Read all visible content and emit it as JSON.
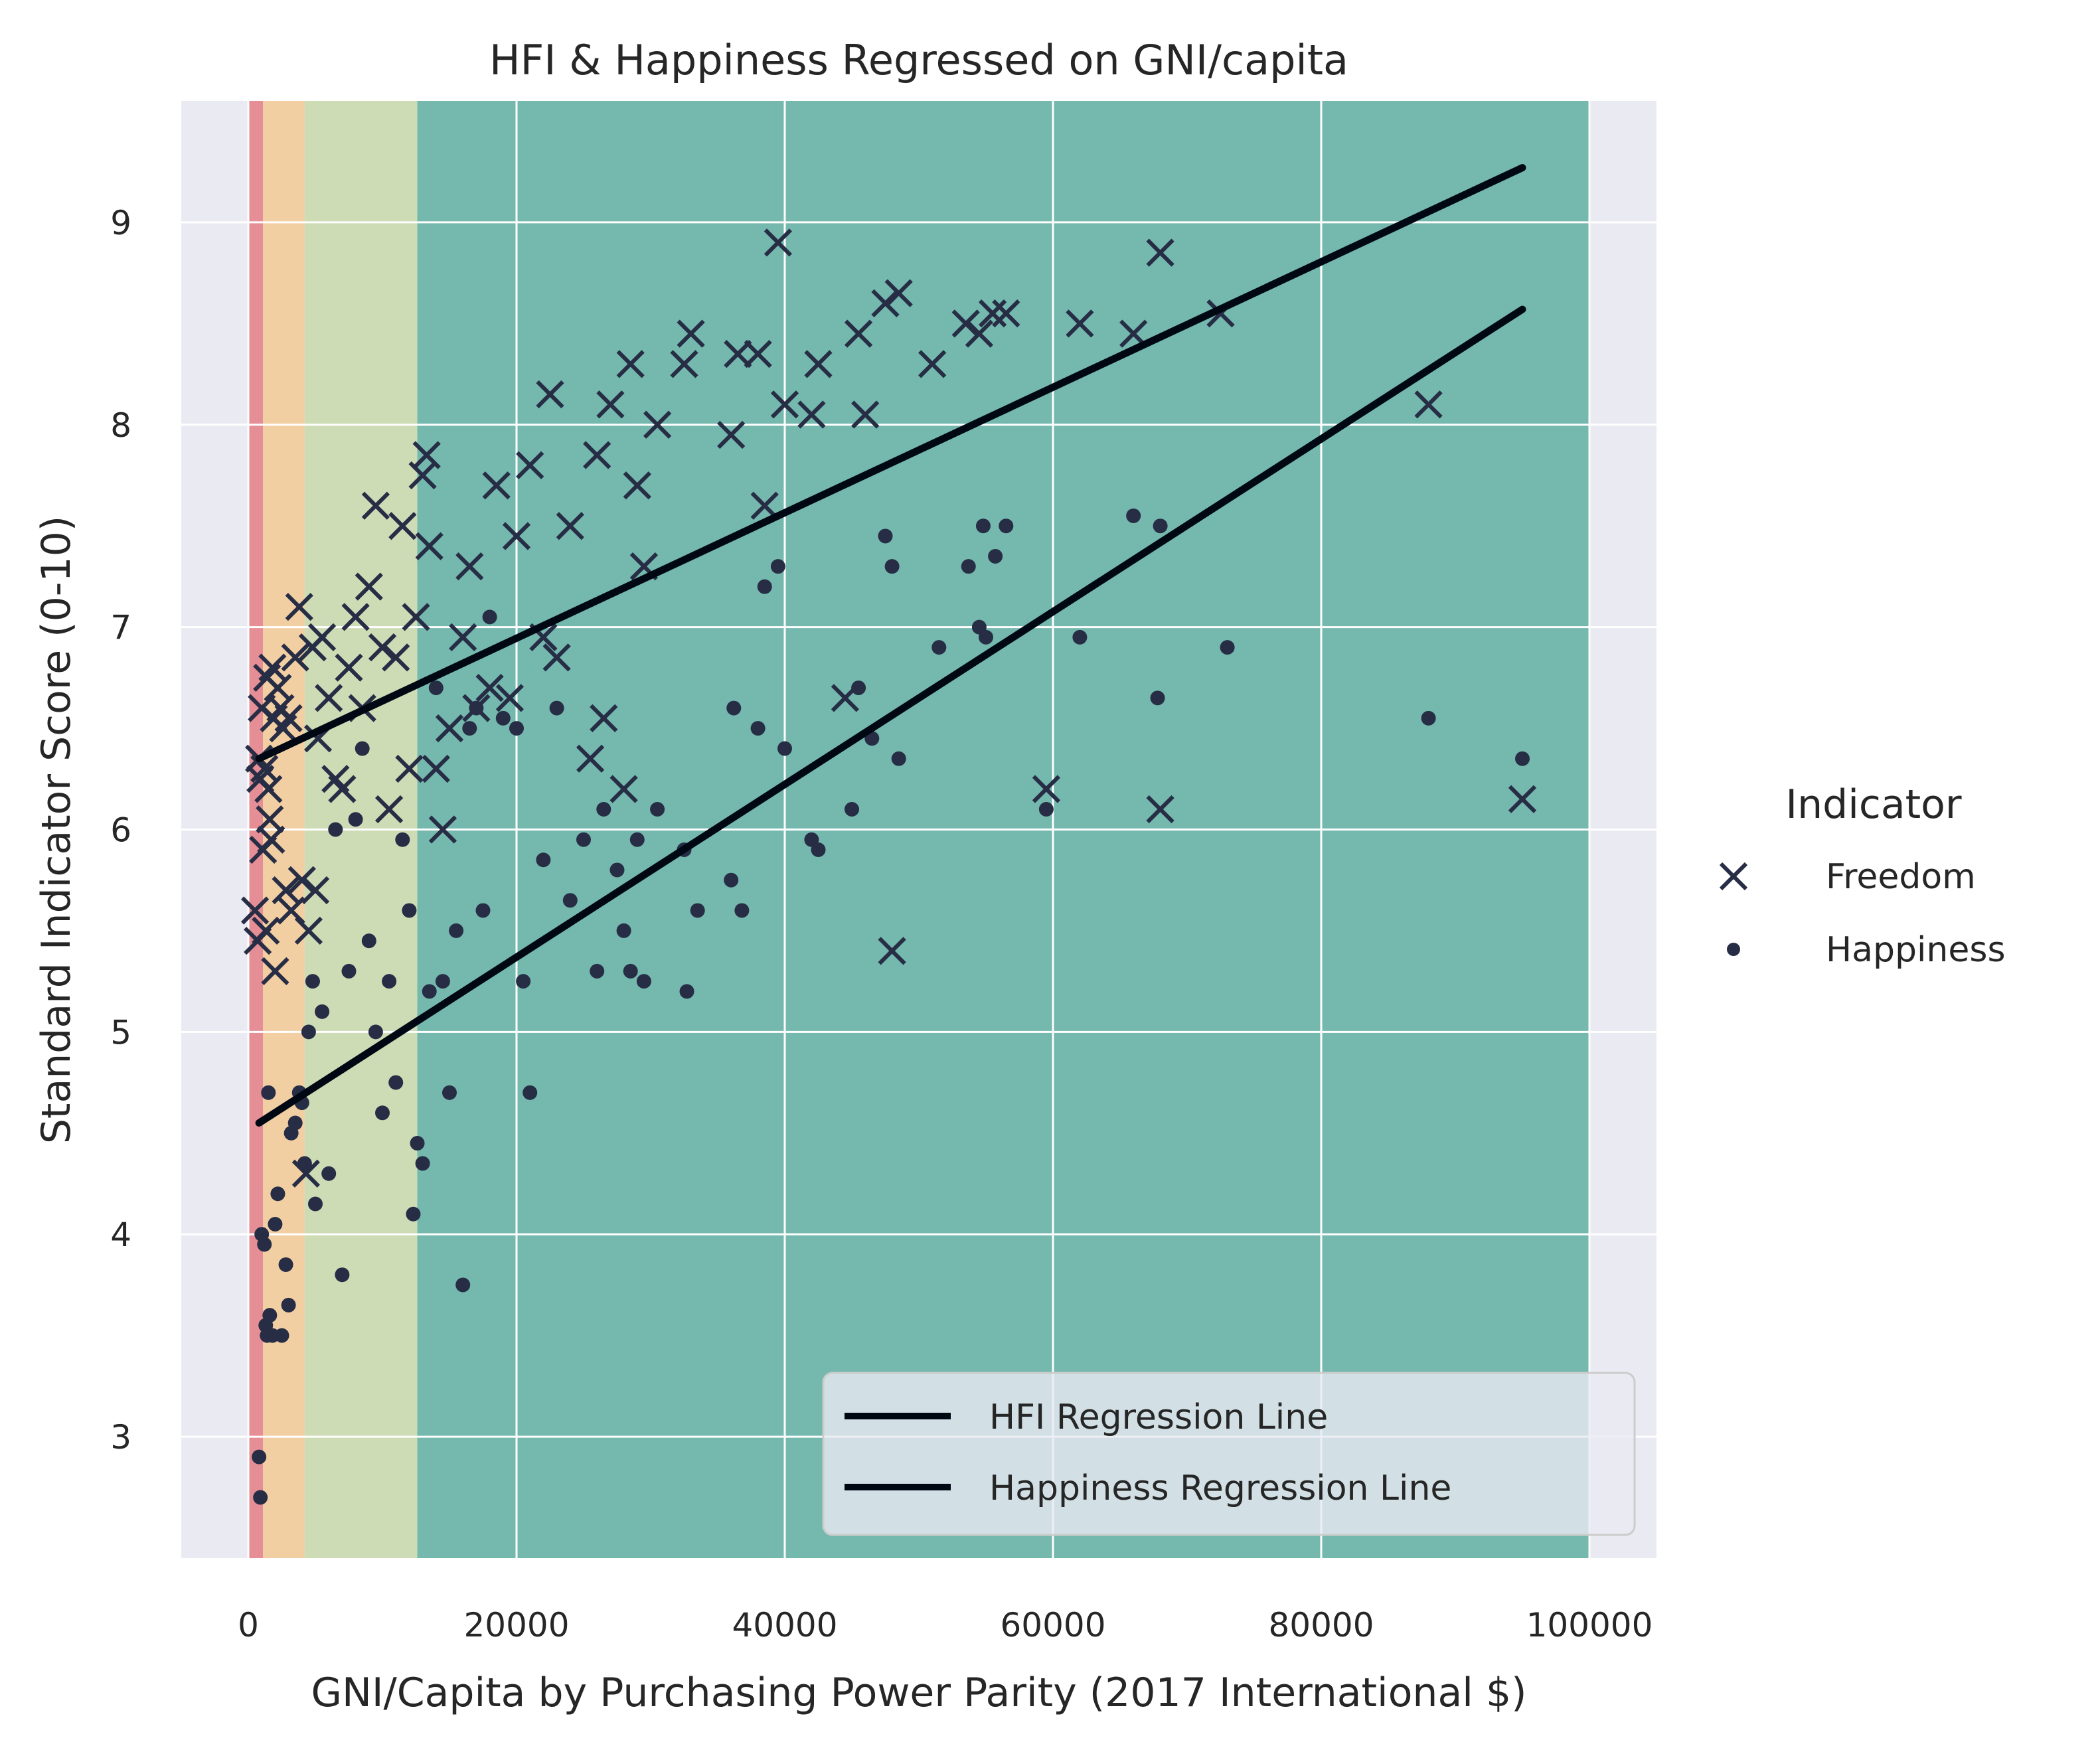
{
  "chart_data": {
    "type": "scatter",
    "title": "HFI & Happiness Regressed on GNI/capita",
    "xlabel": "GNI/Capita by Purchasing Power Parity (2017 International $)",
    "ylabel": "Standard Indicator Score (0-10)",
    "xlim": [
      -5000,
      105000
    ],
    "ylim": [
      2.4,
      9.6
    ],
    "x_ticks": [
      0,
      20000,
      40000,
      60000,
      80000,
      100000
    ],
    "x_tick_labels": [
      "0",
      "20000",
      "40000",
      "60000",
      "80000",
      "100000"
    ],
    "y_ticks": [
      3,
      4,
      5,
      6,
      7,
      8,
      9
    ],
    "y_tick_labels": [
      "3",
      "4",
      "5",
      "6",
      "7",
      "8",
      "9"
    ],
    "grid": true,
    "income_bands": [
      {
        "x0": 0,
        "x1": 1100,
        "color": "#e58e96"
      },
      {
        "x0": 1100,
        "x1": 4200,
        "color": "#f2cfa3"
      },
      {
        "x0": 4200,
        "x1": 12600,
        "color": "#cddcb5"
      },
      {
        "x0": 12600,
        "x1": 100000,
        "color": "#74b8ae"
      }
    ],
    "colors": {
      "background": "#eaeaf2",
      "marker": "#262d45",
      "line": "#000814",
      "grid": "#ffffff"
    },
    "series": [
      {
        "name": "Freedom",
        "marker": "x",
        "points": [
          [
            500,
            5.6
          ],
          [
            700,
            5.45
          ],
          [
            800,
            6.35
          ],
          [
            900,
            6.25
          ],
          [
            1000,
            6.6
          ],
          [
            1100,
            5.9
          ],
          [
            1200,
            6.3
          ],
          [
            1300,
            5.5
          ],
          [
            1400,
            6.75
          ],
          [
            1500,
            6.2
          ],
          [
            1600,
            6.05
          ],
          [
            1700,
            5.95
          ],
          [
            1800,
            6.8
          ],
          [
            1900,
            6.55
          ],
          [
            2000,
            5.3
          ],
          [
            2200,
            6.7
          ],
          [
            2400,
            6.6
          ],
          [
            2600,
            6.5
          ],
          [
            2800,
            5.7
          ],
          [
            3000,
            6.55
          ],
          [
            3200,
            5.6
          ],
          [
            3500,
            6.85
          ],
          [
            3800,
            7.1
          ],
          [
            4000,
            5.75
          ],
          [
            4300,
            4.3
          ],
          [
            4500,
            5.5
          ],
          [
            4800,
            6.9
          ],
          [
            5000,
            5.7
          ],
          [
            5200,
            6.45
          ],
          [
            5500,
            6.95
          ],
          [
            6000,
            6.65
          ],
          [
            6500,
            6.25
          ],
          [
            7000,
            6.2
          ],
          [
            7500,
            6.8
          ],
          [
            8000,
            7.05
          ],
          [
            8500,
            6.6
          ],
          [
            9000,
            7.2
          ],
          [
            9500,
            7.6
          ],
          [
            10000,
            6.9
          ],
          [
            10500,
            6.1
          ],
          [
            11000,
            6.85
          ],
          [
            11500,
            7.5
          ],
          [
            12000,
            6.3
          ],
          [
            12500,
            7.05
          ],
          [
            13000,
            7.75
          ],
          [
            13300,
            7.85
          ],
          [
            13500,
            7.4
          ],
          [
            14000,
            6.3
          ],
          [
            14500,
            6.0
          ],
          [
            15000,
            6.5
          ],
          [
            16000,
            6.95
          ],
          [
            16500,
            7.3
          ],
          [
            17000,
            6.6
          ],
          [
            18000,
            6.7
          ],
          [
            18500,
            7.7
          ],
          [
            19500,
            6.65
          ],
          [
            20000,
            7.45
          ],
          [
            21000,
            7.8
          ],
          [
            22000,
            6.95
          ],
          [
            22500,
            8.15
          ],
          [
            23000,
            6.85
          ],
          [
            24000,
            7.5
          ],
          [
            25500,
            6.35
          ],
          [
            26000,
            7.85
          ],
          [
            26500,
            6.55
          ],
          [
            27000,
            8.1
          ],
          [
            28000,
            6.2
          ],
          [
            28500,
            8.3
          ],
          [
            29000,
            7.7
          ],
          [
            29500,
            7.3
          ],
          [
            30500,
            8.0
          ],
          [
            32500,
            8.3
          ],
          [
            33000,
            8.45
          ],
          [
            36000,
            7.95
          ],
          [
            36500,
            8.35
          ],
          [
            38000,
            8.35
          ],
          [
            38500,
            7.6
          ],
          [
            39500,
            8.9
          ],
          [
            40000,
            8.1
          ],
          [
            42000,
            8.05
          ],
          [
            42500,
            8.3
          ],
          [
            44500,
            6.65
          ],
          [
            45500,
            8.45
          ],
          [
            46000,
            8.05
          ],
          [
            47500,
            8.6
          ],
          [
            48000,
            5.4
          ],
          [
            48500,
            8.65
          ],
          [
            51000,
            8.3
          ],
          [
            53500,
            8.5
          ],
          [
            54500,
            8.45
          ],
          [
            55500,
            8.55
          ],
          [
            56500,
            8.55
          ],
          [
            59500,
            6.2
          ],
          [
            62000,
            8.5
          ],
          [
            66000,
            8.45
          ],
          [
            68000,
            8.85
          ],
          [
            68000,
            6.1
          ],
          [
            72500,
            8.55
          ],
          [
            88000,
            8.1
          ],
          [
            95000,
            6.15
          ]
        ]
      },
      {
        "name": "Happiness",
        "marker": "dot",
        "points": [
          [
            800,
            2.9
          ],
          [
            900,
            2.7
          ],
          [
            1000,
            4.0
          ],
          [
            1200,
            3.95
          ],
          [
            1300,
            3.55
          ],
          [
            1400,
            3.5
          ],
          [
            1500,
            4.7
          ],
          [
            1600,
            3.6
          ],
          [
            1800,
            3.5
          ],
          [
            2000,
            4.05
          ],
          [
            2200,
            4.2
          ],
          [
            2500,
            3.5
          ],
          [
            2800,
            3.85
          ],
          [
            3000,
            3.65
          ],
          [
            3200,
            4.5
          ],
          [
            3500,
            4.55
          ],
          [
            3800,
            4.7
          ],
          [
            4000,
            4.65
          ],
          [
            4200,
            4.35
          ],
          [
            4500,
            5.0
          ],
          [
            4800,
            5.25
          ],
          [
            5000,
            4.15
          ],
          [
            5500,
            5.1
          ],
          [
            6000,
            4.3
          ],
          [
            6500,
            6.0
          ],
          [
            7000,
            3.8
          ],
          [
            7500,
            5.3
          ],
          [
            8000,
            6.05
          ],
          [
            8500,
            6.4
          ],
          [
            9000,
            5.45
          ],
          [
            9500,
            5.0
          ],
          [
            10000,
            4.6
          ],
          [
            10500,
            5.25
          ],
          [
            11000,
            4.75
          ],
          [
            11500,
            5.95
          ],
          [
            12000,
            5.6
          ],
          [
            12300,
            4.1
          ],
          [
            12600,
            4.45
          ],
          [
            13000,
            4.35
          ],
          [
            13500,
            5.2
          ],
          [
            14000,
            6.7
          ],
          [
            14500,
            5.25
          ],
          [
            15000,
            4.7
          ],
          [
            15500,
            5.5
          ],
          [
            16000,
            3.75
          ],
          [
            16500,
            6.5
          ],
          [
            17000,
            6.6
          ],
          [
            17500,
            5.6
          ],
          [
            18000,
            7.05
          ],
          [
            19000,
            6.55
          ],
          [
            20000,
            6.5
          ],
          [
            20500,
            5.25
          ],
          [
            21000,
            4.7
          ],
          [
            22000,
            5.85
          ],
          [
            23000,
            6.6
          ],
          [
            24000,
            5.65
          ],
          [
            25000,
            5.95
          ],
          [
            26000,
            5.3
          ],
          [
            26500,
            6.1
          ],
          [
            27500,
            5.8
          ],
          [
            28000,
            5.5
          ],
          [
            28500,
            5.3
          ],
          [
            29000,
            5.95
          ],
          [
            29500,
            5.25
          ],
          [
            30500,
            6.1
          ],
          [
            32500,
            5.9
          ],
          [
            32700,
            5.2
          ],
          [
            33500,
            5.6
          ],
          [
            36000,
            5.75
          ],
          [
            36200,
            6.6
          ],
          [
            36800,
            5.6
          ],
          [
            38000,
            6.5
          ],
          [
            38500,
            7.2
          ],
          [
            39500,
            7.3
          ],
          [
            40000,
            6.4
          ],
          [
            42000,
            5.95
          ],
          [
            42500,
            5.9
          ],
          [
            45000,
            6.1
          ],
          [
            45500,
            6.7
          ],
          [
            46500,
            6.45
          ],
          [
            47500,
            7.45
          ],
          [
            48000,
            7.3
          ],
          [
            48500,
            6.35
          ],
          [
            51500,
            6.9
          ],
          [
            53700,
            7.3
          ],
          [
            54500,
            7.0
          ],
          [
            54800,
            7.5
          ],
          [
            55000,
            6.95
          ],
          [
            55700,
            7.35
          ],
          [
            56500,
            7.5
          ],
          [
            59500,
            6.1
          ],
          [
            62000,
            6.95
          ],
          [
            66000,
            7.55
          ],
          [
            67800,
            6.65
          ],
          [
            68000,
            7.5
          ],
          [
            73000,
            6.9
          ],
          [
            88000,
            6.55
          ],
          [
            95000,
            6.35
          ]
        ]
      }
    ],
    "regression_lines": [
      {
        "name": "HFI Regression Line",
        "x": [
          800,
          95000
        ],
        "y": [
          6.35,
          9.27
        ]
      },
      {
        "name": "Happiness Regression Line",
        "x": [
          800,
          95000
        ],
        "y": [
          4.55,
          8.57
        ]
      }
    ],
    "legend_indicator": {
      "title": "Indicator",
      "entries": [
        "Freedom",
        "Happiness"
      ],
      "placement": "right"
    },
    "legend_lines": {
      "entries": [
        "HFI Regression Line",
        "Happiness Regression Line"
      ],
      "placement": "lower-right"
    }
  }
}
